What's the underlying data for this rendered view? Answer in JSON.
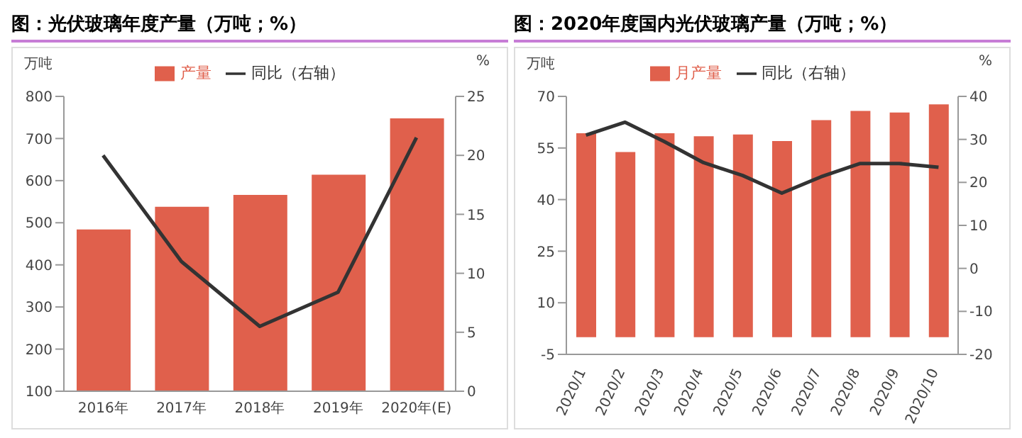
{
  "chart_data": [
    {
      "type": "bar",
      "title": "图：光伏玻璃年度产量（万吨；%）",
      "ylabel": "万吨",
      "y2label": "%",
      "categories": [
        "2016年",
        "2017年",
        "2018年",
        "2019年",
        "2020年(E)"
      ],
      "series": [
        {
          "name": "产量",
          "color": "#e0604c",
          "values": [
            484,
            538,
            566,
            614,
            748
          ]
        },
        {
          "name": "同比（右轴）",
          "type": "line",
          "axis": "y2",
          "color": "#333333",
          "values": [
            20,
            11,
            5.5,
            8.4,
            21.5
          ]
        }
      ],
      "ylim": [
        100,
        800
      ],
      "yticks": [
        100,
        200,
        300,
        400,
        500,
        600,
        700,
        800
      ],
      "y2lim": [
        0,
        25
      ],
      "y2ticks": [
        0,
        5,
        10,
        15,
        20,
        25
      ],
      "legend": "top",
      "marker": "none"
    },
    {
      "type": "bar",
      "title": "图：2020年度国内光伏玻璃产量（万吨；%）",
      "ylabel": "万吨",
      "y2label": "%",
      "categories": [
        "2020/1",
        "2020/2",
        "2020/3",
        "2020/4",
        "2020/5",
        "2020/6",
        "2020/7",
        "2020/8",
        "2020/9",
        "2020/10"
      ],
      "series": [
        {
          "name": "月产量",
          "color": "#e0604c",
          "values": [
            59.3,
            53.8,
            59.3,
            58.4,
            58.9,
            57,
            63.1,
            65.8,
            65.3,
            67.7
          ]
        },
        {
          "name": "同比（右轴）",
          "type": "line",
          "axis": "y2",
          "color": "#333333",
          "values": [
            31,
            34,
            29.5,
            24.6,
            21.6,
            17.5,
            21.3,
            24.4,
            24.4,
            23.5
          ]
        }
      ],
      "ylim": [
        -5,
        70
      ],
      "yticks": [
        -5,
        10,
        25,
        40,
        55,
        70
      ],
      "y2lim": [
        -20,
        40
      ],
      "y2ticks": [
        -20,
        -10,
        0,
        10,
        20,
        30,
        40
      ],
      "legend": "top",
      "marker": "none"
    }
  ]
}
